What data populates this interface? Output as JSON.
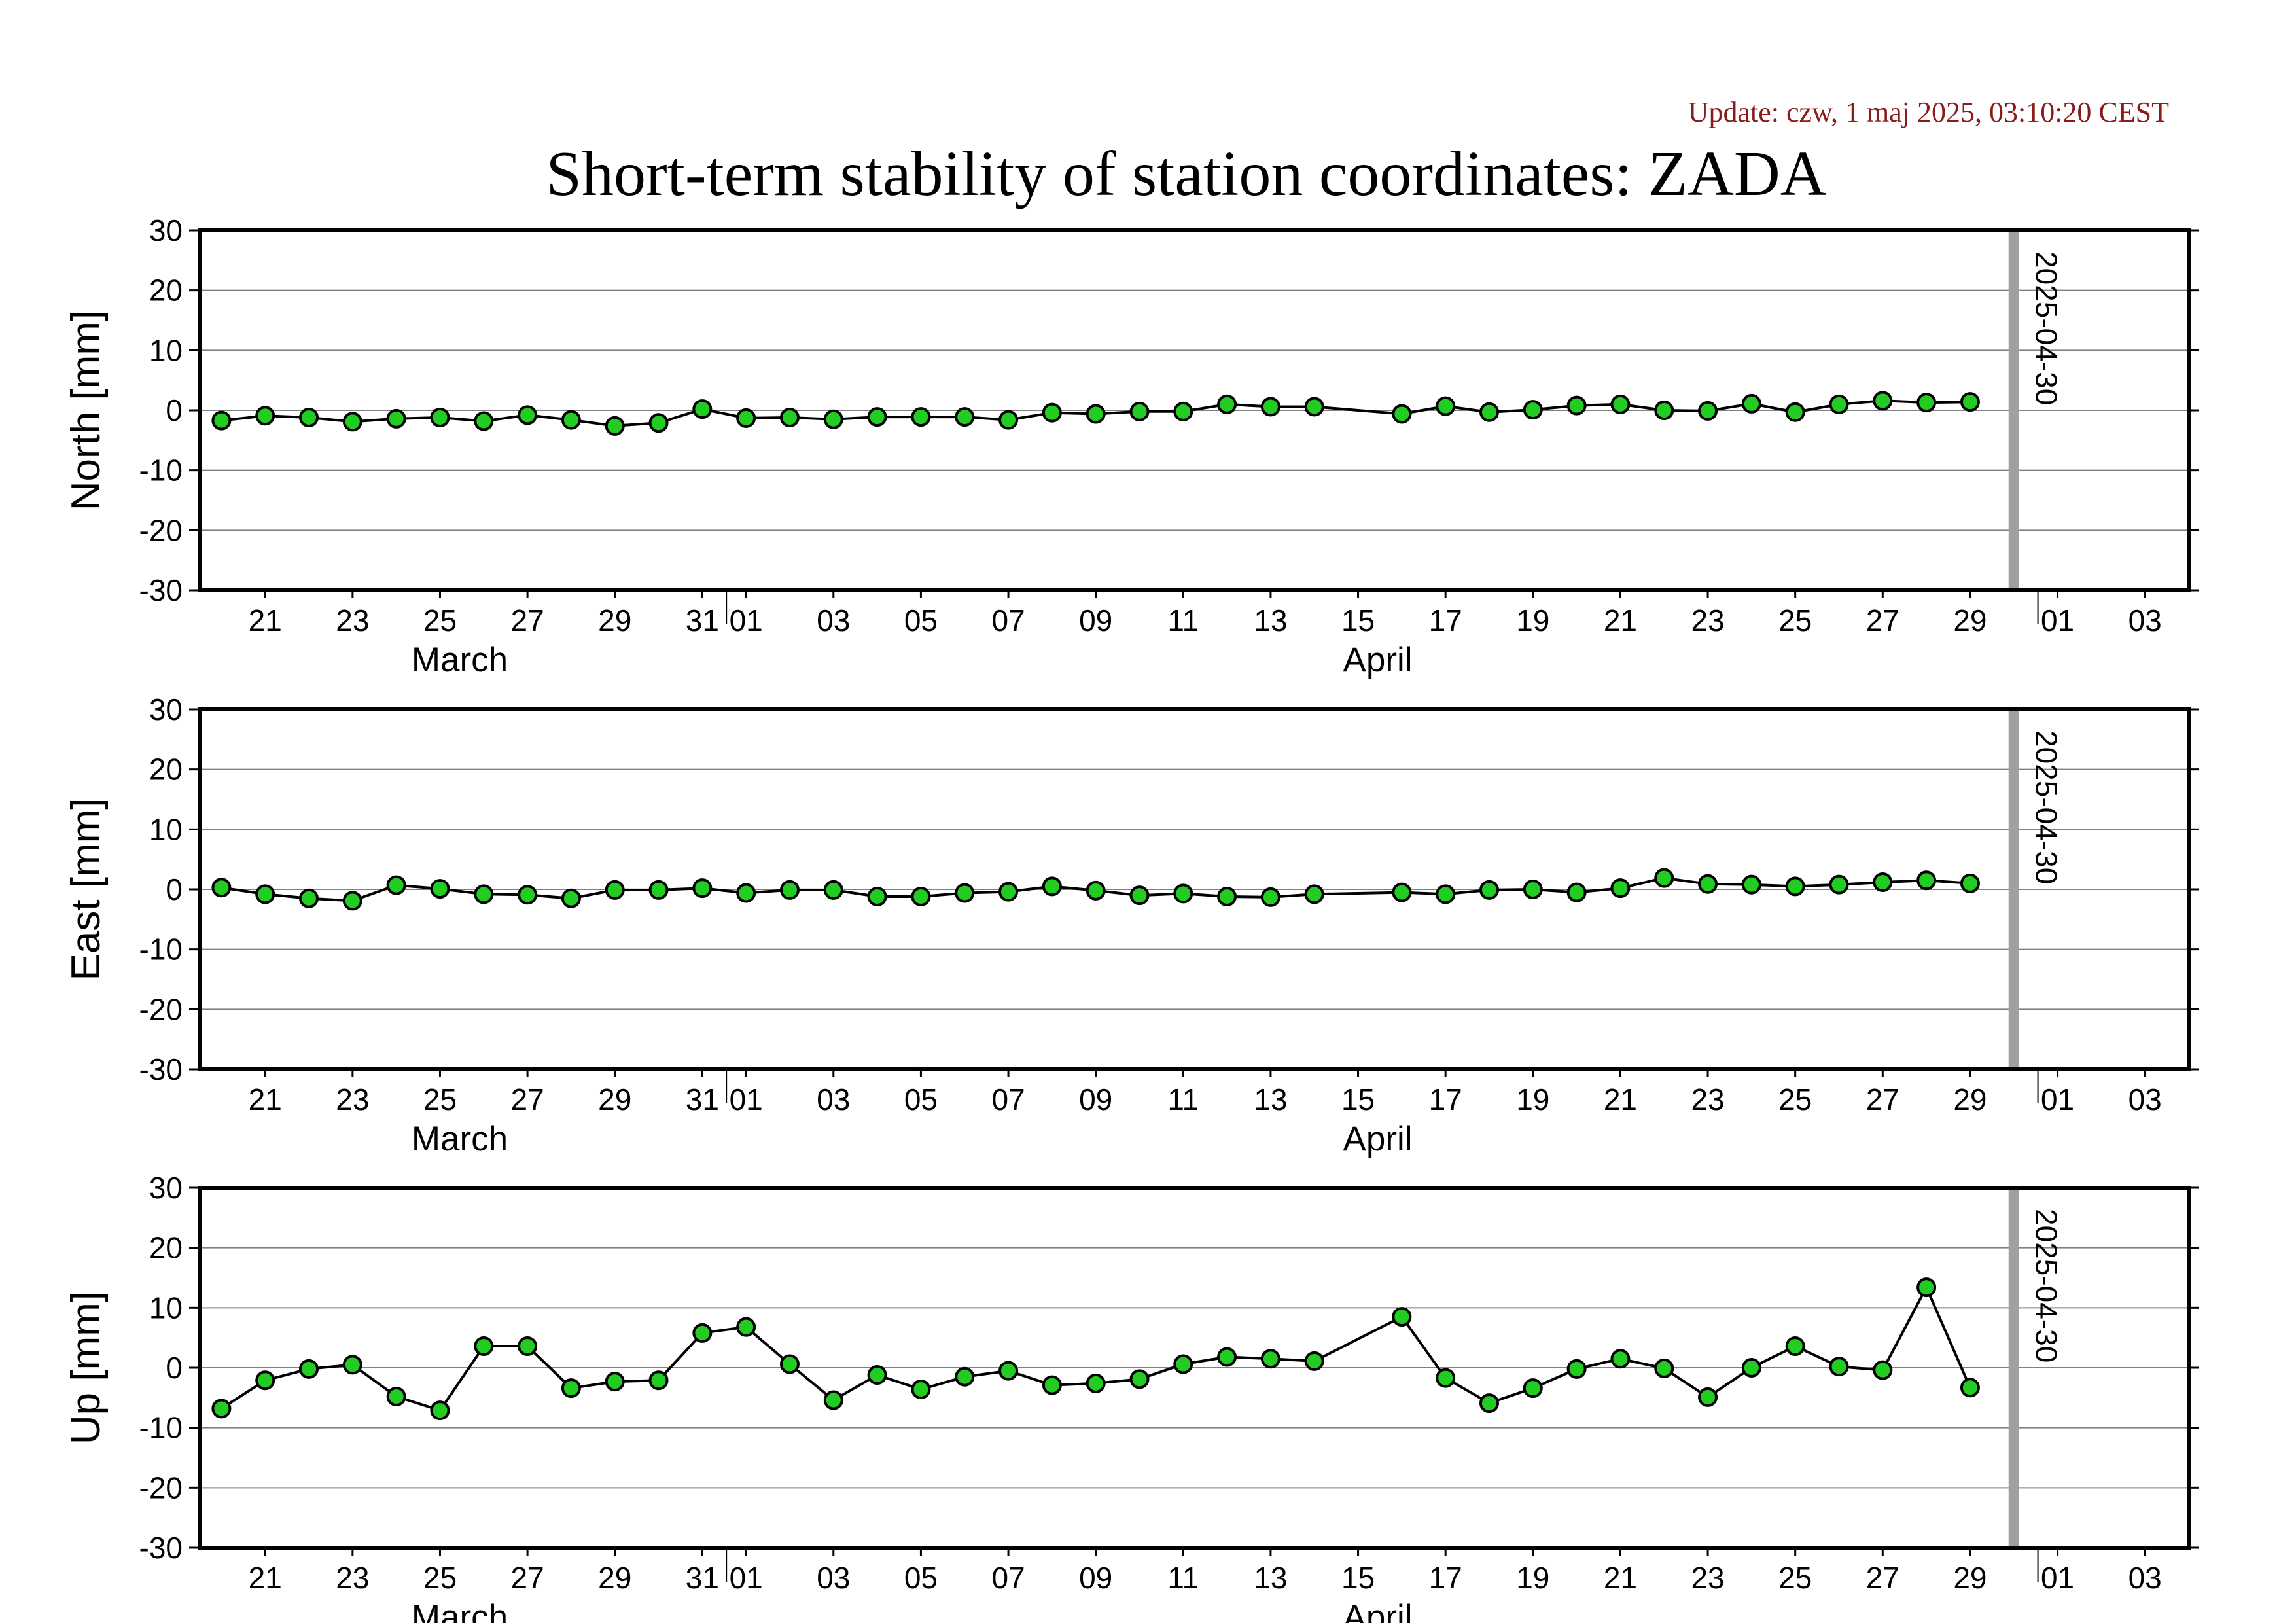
{
  "update_text": "Update: czw, 1 maj 2025, 03:10:20 CEST",
  "title": "Short-term stability of station coordinates: ZADA",
  "colors": {
    "update": "#8b1a1a",
    "marker_fill": "#22cc22",
    "marker_stroke": "#000000",
    "line": "#000000",
    "grid": "#808080",
    "date_marker": "#a0a0a0"
  },
  "chart_data": [
    {
      "type": "line",
      "ylabel": "North [mm]",
      "ylim": [
        -30,
        30
      ],
      "yticks": [
        -30,
        -20,
        -10,
        0,
        10,
        20,
        30
      ],
      "xlim": [
        "2025-03-19T12:00",
        "2025-05-04T00:00"
      ],
      "xticks": [
        "2025-03-21",
        "2025-03-23",
        "2025-03-25",
        "2025-03-27",
        "2025-03-29",
        "2025-03-31",
        "2025-04-01",
        "2025-04-03",
        "2025-04-05",
        "2025-04-07",
        "2025-04-09",
        "2025-04-11",
        "2025-04-13",
        "2025-04-15",
        "2025-04-17",
        "2025-04-19",
        "2025-04-21",
        "2025-04-23",
        "2025-04-25",
        "2025-04-27",
        "2025-04-29",
        "2025-05-01",
        "2025-05-03"
      ],
      "xtick_labels": [
        "21",
        "23",
        "25",
        "27",
        "29",
        "31",
        "01",
        "03",
        "05",
        "07",
        "09",
        "11",
        "13",
        "15",
        "17",
        "19",
        "21",
        "23",
        "25",
        "27",
        "29",
        "01",
        "03"
      ],
      "months": [
        {
          "label": "March",
          "date": "2025-03-25"
        },
        {
          "label": "April",
          "date": "2025-04-15"
        }
      ],
      "grid": true,
      "date_marker": {
        "date": "2025-04-30",
        "label": "2025-04-30"
      },
      "x": [
        "2025-03-20",
        "2025-03-21",
        "2025-03-22",
        "2025-03-23",
        "2025-03-24",
        "2025-03-25",
        "2025-03-26",
        "2025-03-27",
        "2025-03-28",
        "2025-03-29",
        "2025-03-30",
        "2025-03-31",
        "2025-04-01",
        "2025-04-02",
        "2025-04-03",
        "2025-04-04",
        "2025-04-05",
        "2025-04-06",
        "2025-04-07",
        "2025-04-08",
        "2025-04-09",
        "2025-04-10",
        "2025-04-11",
        "2025-04-12",
        "2025-04-13",
        "2025-04-14",
        "2025-04-16",
        "2025-04-17",
        "2025-04-18",
        "2025-04-19",
        "2025-04-20",
        "2025-04-21",
        "2025-04-22",
        "2025-04-23",
        "2025-04-24",
        "2025-04-25",
        "2025-04-26",
        "2025-04-27",
        "2025-04-28",
        "2025-04-29"
      ],
      "values": [
        -1.7,
        -0.9,
        -1.2,
        -1.9,
        -1.4,
        -1.2,
        -1.8,
        -0.8,
        -1.6,
        -2.6,
        -2.1,
        0.2,
        -1.3,
        -1.2,
        -1.5,
        -1.1,
        -1.1,
        -1.1,
        -1.6,
        -0.4,
        -0.6,
        -0.2,
        -0.2,
        1.0,
        0.6,
        0.6,
        -0.6,
        0.7,
        -0.3,
        0.1,
        0.8,
        1.0,
        0.0,
        -0.1,
        1.1,
        -0.3,
        1.0,
        1.6,
        1.3,
        1.4
      ]
    },
    {
      "type": "line",
      "ylabel": "East [mm]",
      "ylim": [
        -30,
        30
      ],
      "yticks": [
        -30,
        -20,
        -10,
        0,
        10,
        20,
        30
      ],
      "xlim": [
        "2025-03-19T12:00",
        "2025-05-04T00:00"
      ],
      "xticks": [
        "2025-03-21",
        "2025-03-23",
        "2025-03-25",
        "2025-03-27",
        "2025-03-29",
        "2025-03-31",
        "2025-04-01",
        "2025-04-03",
        "2025-04-05",
        "2025-04-07",
        "2025-04-09",
        "2025-04-11",
        "2025-04-13",
        "2025-04-15",
        "2025-04-17",
        "2025-04-19",
        "2025-04-21",
        "2025-04-23",
        "2025-04-25",
        "2025-04-27",
        "2025-04-29",
        "2025-05-01",
        "2025-05-03"
      ],
      "xtick_labels": [
        "21",
        "23",
        "25",
        "27",
        "29",
        "31",
        "01",
        "03",
        "05",
        "07",
        "09",
        "11",
        "13",
        "15",
        "17",
        "19",
        "21",
        "23",
        "25",
        "27",
        "29",
        "01",
        "03"
      ],
      "months": [
        {
          "label": "March",
          "date": "2025-03-25"
        },
        {
          "label": "April",
          "date": "2025-04-15"
        }
      ],
      "grid": true,
      "date_marker": {
        "date": "2025-04-30",
        "label": "2025-04-30"
      },
      "x": [
        "2025-03-20",
        "2025-03-21",
        "2025-03-22",
        "2025-03-23",
        "2025-03-24",
        "2025-03-25",
        "2025-03-26",
        "2025-03-27",
        "2025-03-28",
        "2025-03-29",
        "2025-03-30",
        "2025-03-31",
        "2025-04-01",
        "2025-04-02",
        "2025-04-03",
        "2025-04-04",
        "2025-04-05",
        "2025-04-06",
        "2025-04-07",
        "2025-04-08",
        "2025-04-09",
        "2025-04-10",
        "2025-04-11",
        "2025-04-12",
        "2025-04-13",
        "2025-04-14",
        "2025-04-16",
        "2025-04-17",
        "2025-04-18",
        "2025-04-19",
        "2025-04-20",
        "2025-04-21",
        "2025-04-22",
        "2025-04-23",
        "2025-04-24",
        "2025-04-25",
        "2025-04-26",
        "2025-04-27",
        "2025-04-28",
        "2025-04-29"
      ],
      "values": [
        0.3,
        -0.8,
        -1.5,
        -1.9,
        0.7,
        0.1,
        -0.8,
        -0.9,
        -1.5,
        -0.1,
        -0.1,
        0.2,
        -0.6,
        -0.1,
        -0.1,
        -1.2,
        -1.2,
        -0.6,
        -0.4,
        0.5,
        -0.2,
        -1.0,
        -0.7,
        -1.2,
        -1.3,
        -0.8,
        -0.5,
        -0.8,
        -0.1,
        0.0,
        -0.5,
        0.2,
        1.9,
        0.9,
        0.8,
        0.5,
        0.8,
        1.2,
        1.5,
        1.0
      ]
    },
    {
      "type": "line",
      "ylabel": "Up [mm]",
      "ylim": [
        -30,
        30
      ],
      "yticks": [
        -30,
        -20,
        -10,
        0,
        10,
        20,
        30
      ],
      "xlim": [
        "2025-03-19T12:00",
        "2025-05-04T00:00"
      ],
      "xticks": [
        "2025-03-21",
        "2025-03-23",
        "2025-03-25",
        "2025-03-27",
        "2025-03-29",
        "2025-03-31",
        "2025-04-01",
        "2025-04-03",
        "2025-04-05",
        "2025-04-07",
        "2025-04-09",
        "2025-04-11",
        "2025-04-13",
        "2025-04-15",
        "2025-04-17",
        "2025-04-19",
        "2025-04-21",
        "2025-04-23",
        "2025-04-25",
        "2025-04-27",
        "2025-04-29",
        "2025-05-01",
        "2025-05-03"
      ],
      "xtick_labels": [
        "21",
        "23",
        "25",
        "27",
        "29",
        "31",
        "01",
        "03",
        "05",
        "07",
        "09",
        "11",
        "13",
        "15",
        "17",
        "19",
        "21",
        "23",
        "25",
        "27",
        "29",
        "01",
        "03"
      ],
      "months": [
        {
          "label": "March",
          "date": "2025-03-25"
        },
        {
          "label": "April",
          "date": "2025-04-15"
        }
      ],
      "grid": true,
      "date_marker": {
        "date": "2025-04-30",
        "label": "2025-04-30"
      },
      "x": [
        "2025-03-20",
        "2025-03-21",
        "2025-03-22",
        "2025-03-23",
        "2025-03-24",
        "2025-03-25",
        "2025-03-26",
        "2025-03-27",
        "2025-03-28",
        "2025-03-29",
        "2025-03-30",
        "2025-03-31",
        "2025-04-01",
        "2025-04-02",
        "2025-04-03",
        "2025-04-04",
        "2025-04-05",
        "2025-04-06",
        "2025-04-07",
        "2025-04-08",
        "2025-04-09",
        "2025-04-10",
        "2025-04-11",
        "2025-04-12",
        "2025-04-13",
        "2025-04-14",
        "2025-04-16",
        "2025-04-17",
        "2025-04-18",
        "2025-04-19",
        "2025-04-20",
        "2025-04-21",
        "2025-04-22",
        "2025-04-23",
        "2025-04-24",
        "2025-04-25",
        "2025-04-26",
        "2025-04-27",
        "2025-04-28",
        "2025-04-29"
      ],
      "values": [
        -6.8,
        -2.1,
        -0.2,
        0.5,
        -4.8,
        -7.1,
        3.6,
        3.6,
        -3.4,
        -2.3,
        -2.1,
        5.8,
        6.8,
        0.6,
        -5.4,
        -1.2,
        -3.6,
        -1.5,
        -0.5,
        -2.9,
        -2.6,
        -1.9,
        0.6,
        1.8,
        1.5,
        1.1,
        8.5,
        -1.7,
        -5.9,
        -3.4,
        -0.2,
        1.5,
        -0.1,
        -4.9,
        0.0,
        3.6,
        0.2,
        -0.4,
        13.4,
        -3.3
      ]
    }
  ]
}
